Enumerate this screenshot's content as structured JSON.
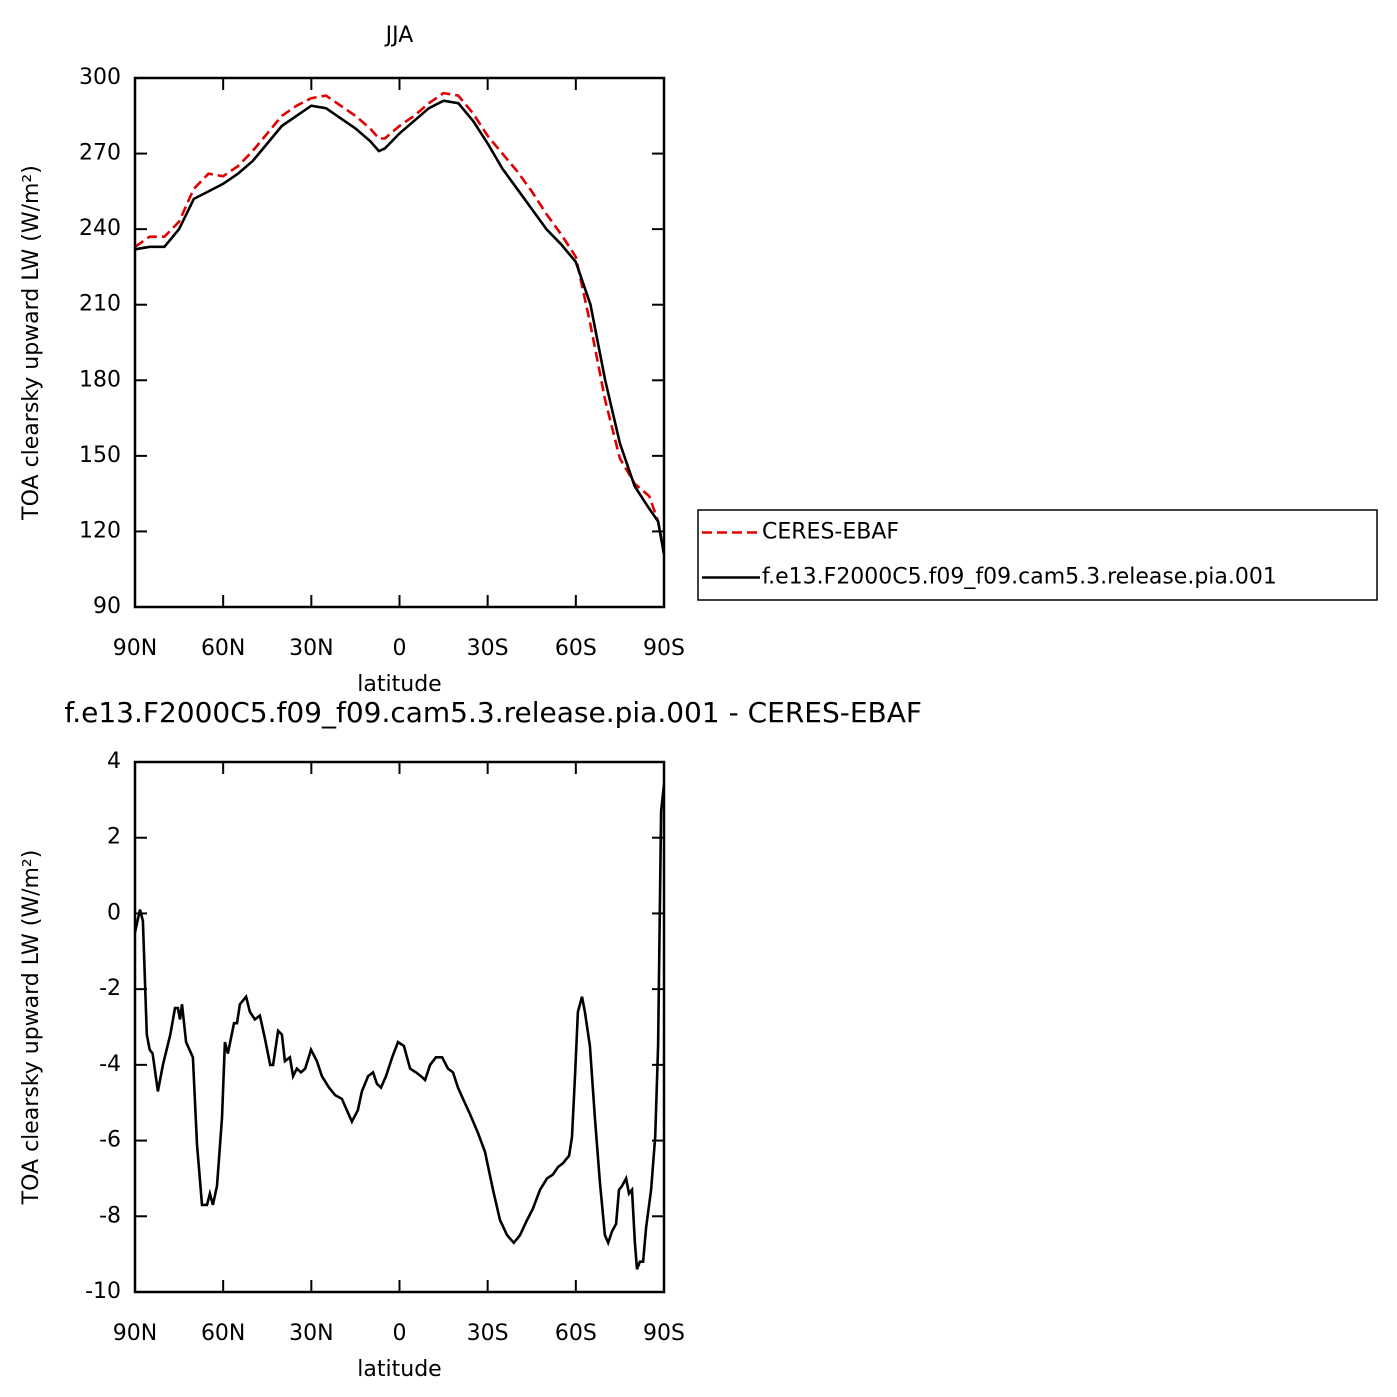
{
  "chart_data": [
    {
      "type": "line",
      "title": "JJA",
      "xlabel": "latitude",
      "ylabel": "TOA clearsky upward LW (W/m²)",
      "x": [
        90,
        85,
        80,
        75,
        70,
        65,
        60,
        55,
        50,
        45,
        40,
        35,
        30,
        25,
        20,
        15,
        10,
        7,
        5,
        0,
        -5,
        -10,
        -15,
        -20,
        -25,
        -30,
        -35,
        -40,
        -45,
        -50,
        -55,
        -60,
        -65,
        -70,
        -75,
        -80,
        -85,
        -88,
        -90
      ],
      "series": [
        {
          "name": "CERES-EBAF",
          "color": "#e00000",
          "dashed": true,
          "values": [
            233,
            237,
            237,
            243,
            256,
            262,
            261,
            265,
            271,
            278,
            285,
            289,
            292,
            293,
            289,
            285,
            280,
            276,
            276,
            281,
            285,
            290,
            294,
            293,
            286,
            277,
            270,
            263,
            255,
            246,
            238,
            229,
            202,
            172,
            149,
            139,
            134,
            124,
            111
          ]
        },
        {
          "name": "f.e13.F2000C5.f09_f09.cam5.3.release.pia.001",
          "color": "#000000",
          "dashed": false,
          "values": [
            232,
            233,
            233,
            240,
            252,
            255,
            258,
            262,
            267,
            274,
            281,
            285,
            289,
            288,
            284,
            280,
            275,
            271,
            272,
            278,
            283,
            288,
            291,
            290,
            283,
            274,
            264,
            256,
            248,
            240,
            234,
            227,
            210,
            180,
            155,
            138,
            129,
            124,
            111
          ]
        }
      ],
      "xlim": [
        90,
        -90
      ],
      "xticks": [
        {
          "value": 90,
          "label": "90N"
        },
        {
          "value": 60,
          "label": "60N"
        },
        {
          "value": 30,
          "label": "30N"
        },
        0,
        {
          "value": -30,
          "label": "30S"
        },
        {
          "value": -60,
          "label": "60S"
        },
        {
          "value": -90,
          "label": "90S"
        }
      ],
      "ylim": [
        90,
        300
      ],
      "yticks": [
        90,
        120,
        150,
        180,
        210,
        240,
        270,
        300
      ],
      "legend": "right"
    },
    {
      "type": "line",
      "title": "f.e13.F2000C5.f09_f09.cam5.3.release.pia.001 - CERES-EBAF",
      "xlabel": "latitude",
      "ylabel": "TOA clearsky upward LW (W/m²)",
      "x": [
        90,
        88.3,
        87.3,
        86,
        85,
        84,
        82.2,
        80.5,
        78,
        76.4,
        75.4,
        74.7,
        74,
        72.6,
        70.3,
        68.9,
        67.2,
        65.5,
        64.5,
        63.5,
        62.1,
        60.4,
        59.4,
        58.4,
        56.3,
        55.3,
        54.3,
        52.2,
        50.9,
        49.2,
        47.5,
        45.8,
        44,
        43,
        41.3,
        40,
        39,
        37.3,
        36.2,
        34.9,
        33.5,
        32.1,
        30.1,
        28.1,
        26.4,
        24,
        21.9,
        19.6,
        17.9,
        16.2,
        14.2,
        12.8,
        10.7,
        9,
        7.7,
        6.3,
        4.6,
        2.5,
        0.5,
        -1.5,
        -3.6,
        -5.6,
        -7.3,
        -8.7,
        -10.4,
        -12.4,
        -14.5,
        -16.5,
        -18.2,
        -19.9,
        -21.6,
        -24,
        -26.7,
        -29.1,
        -31.8,
        -34.2,
        -36.6,
        -38.9,
        -41,
        -43.4,
        -45.4,
        -47.8,
        -50.2,
        -52.2,
        -53.9,
        -55.6,
        -57.7,
        -58.7,
        -59.7,
        -60.7,
        -62.1,
        -63.1,
        -64.8,
        -66.5,
        -68.2,
        -69.9,
        -71,
        -72.3,
        -73.7,
        -74.7,
        -75.7,
        -77.1,
        -78.1,
        -79.1,
        -80.1,
        -80.8,
        -81.8,
        -82.9,
        -83.9,
        -85.6,
        -87,
        -88,
        -89,
        -90
      ],
      "values": [
        -0.5,
        0.1,
        -0.2,
        -3.2,
        -3.6,
        -3.7,
        -4.7,
        -4.0,
        -3.2,
        -2.5,
        -2.5,
        -2.8,
        -2.4,
        -3.4,
        -3.8,
        -6.1,
        -7.7,
        -7.7,
        -7.4,
        -7.7,
        -7.2,
        -5.4,
        -3.4,
        -3.7,
        -2.9,
        -2.9,
        -2.4,
        -2.2,
        -2.6,
        -2.8,
        -2.7,
        -3.3,
        -4.0,
        -4.0,
        -3.1,
        -3.2,
        -3.9,
        -3.8,
        -4.3,
        -4.1,
        -4.2,
        -4.1,
        -3.6,
        -3.9,
        -4.3,
        -4.6,
        -4.8,
        -4.9,
        -5.2,
        -5.5,
        -5.2,
        -4.7,
        -4.3,
        -4.2,
        -4.5,
        -4.6,
        -4.3,
        -3.8,
        -3.4,
        -3.5,
        -4.1,
        -4.2,
        -4.3,
        -4.4,
        -4.0,
        -3.8,
        -3.8,
        -4.1,
        -4.2,
        -4.6,
        -4.9,
        -5.3,
        -5.8,
        -6.3,
        -7.3,
        -8.1,
        -8.5,
        -8.7,
        -8.5,
        -8.1,
        -7.8,
        -7.3,
        -7.0,
        -6.9,
        -6.7,
        -6.6,
        -6.4,
        -5.9,
        -4.3,
        -2.6,
        -2.2,
        -2.6,
        -3.5,
        -5.4,
        -7.1,
        -8.5,
        -8.7,
        -8.4,
        -8.2,
        -7.3,
        -7.2,
        -7.0,
        -7.4,
        -7.3,
        -8.7,
        -9.4,
        -9.2,
        -9.2,
        -8.3,
        -7.3,
        -5.9,
        -3.5,
        2.7,
        3.4
      ],
      "color": "#000000",
      "xlim": [
        90,
        -90
      ],
      "xticks": [
        {
          "value": 90,
          "label": "90N"
        },
        {
          "value": 60,
          "label": "60N"
        },
        {
          "value": 30,
          "label": "30N"
        },
        0,
        {
          "value": -30,
          "label": "30S"
        },
        {
          "value": -60,
          "label": "60S"
        },
        {
          "value": -90,
          "label": "90S"
        }
      ],
      "ylim": [
        -10,
        4
      ],
      "yticks": [
        -10,
        -8,
        -6,
        -4,
        -2,
        0,
        2,
        4
      ]
    }
  ]
}
